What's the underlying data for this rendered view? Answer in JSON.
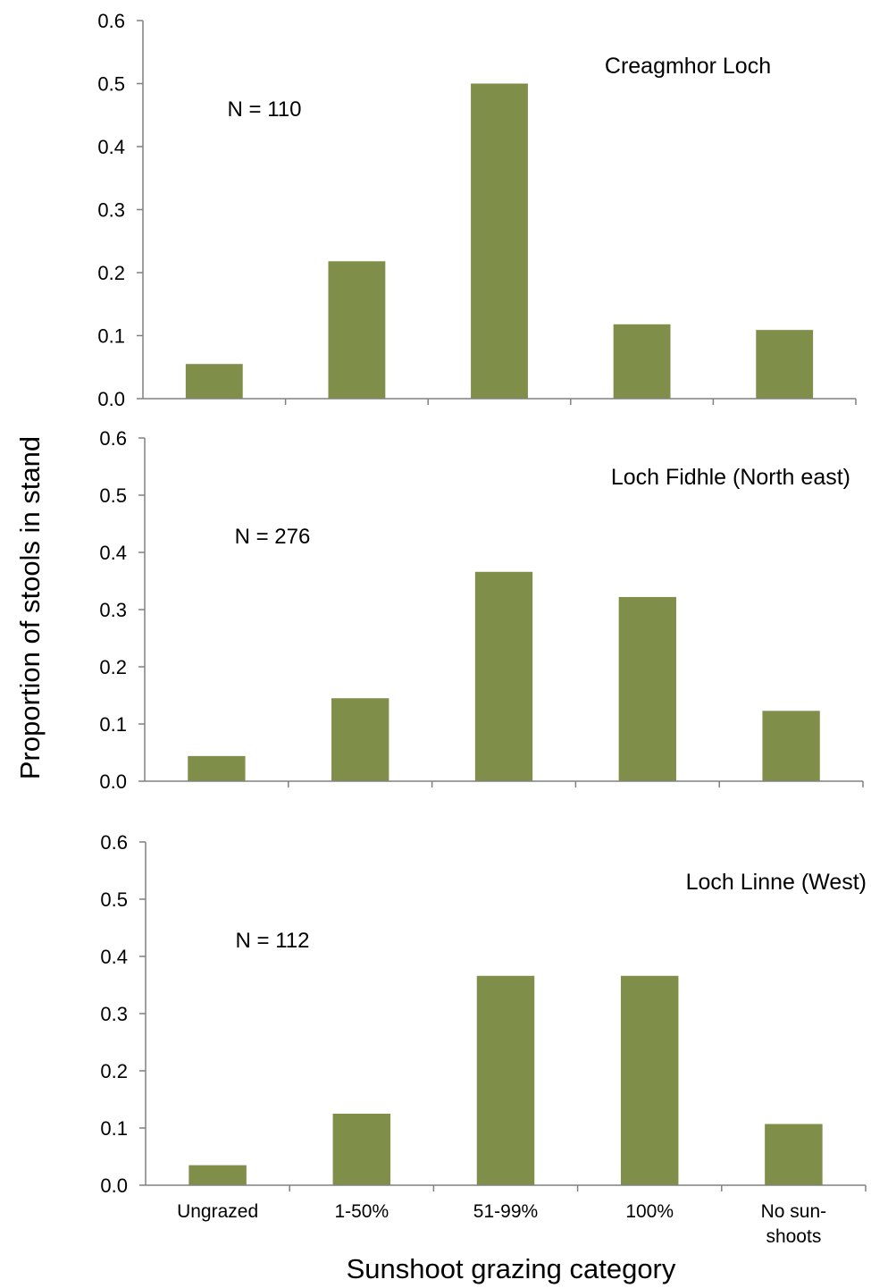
{
  "figure": {
    "ylabel": "Proportion of stools in stand",
    "xlabel": "Sunshoot grazing category"
  },
  "colors": {
    "bar": "#7f8e48",
    "axis": "#808080",
    "text": "#000000"
  },
  "chart_data": [
    {
      "type": "bar",
      "title": "Creagmhor Loch",
      "annotation": "N = 110",
      "categories": [
        "Ungrazed",
        "1-50%",
        "51-99%",
        "100%",
        "No sun-shoots"
      ],
      "values": [
        0.055,
        0.218,
        0.5,
        0.118,
        0.109
      ],
      "ylim": [
        0,
        0.6
      ],
      "yticks": [
        "0.0",
        "0.1",
        "0.2",
        "0.3",
        "0.4",
        "0.5",
        "0.6"
      ],
      "show_category_labels": false
    },
    {
      "type": "bar",
      "title": "Loch Fidhle  (North east)",
      "annotation": "N = 276",
      "categories": [
        "Ungrazed",
        "1-50%",
        "51-99%",
        "100%",
        "No sun-shoots"
      ],
      "values": [
        0.044,
        0.145,
        0.366,
        0.322,
        0.123
      ],
      "ylim": [
        0,
        0.6
      ],
      "yticks": [
        "0.0",
        "0.1",
        "0.2",
        "0.3",
        "0.4",
        "0.5",
        "0.6"
      ],
      "show_category_labels": false
    },
    {
      "type": "bar",
      "title": "Loch Linne (West)",
      "annotation": "N = 112",
      "categories": [
        "Ungrazed",
        "1-50%",
        "51-99%",
        "100%",
        "No sun-shoots"
      ],
      "category_lines": [
        [
          "Ungrazed"
        ],
        [
          "1-50%"
        ],
        [
          "51-99%"
        ],
        [
          "100%"
        ],
        [
          "No sun-",
          "shoots"
        ]
      ],
      "values": [
        0.035,
        0.125,
        0.366,
        0.366,
        0.107
      ],
      "ylim": [
        0,
        0.6
      ],
      "yticks": [
        "0.0",
        "0.1",
        "0.2",
        "0.3",
        "0.4",
        "0.5",
        "0.6"
      ],
      "show_category_labels": true
    }
  ]
}
